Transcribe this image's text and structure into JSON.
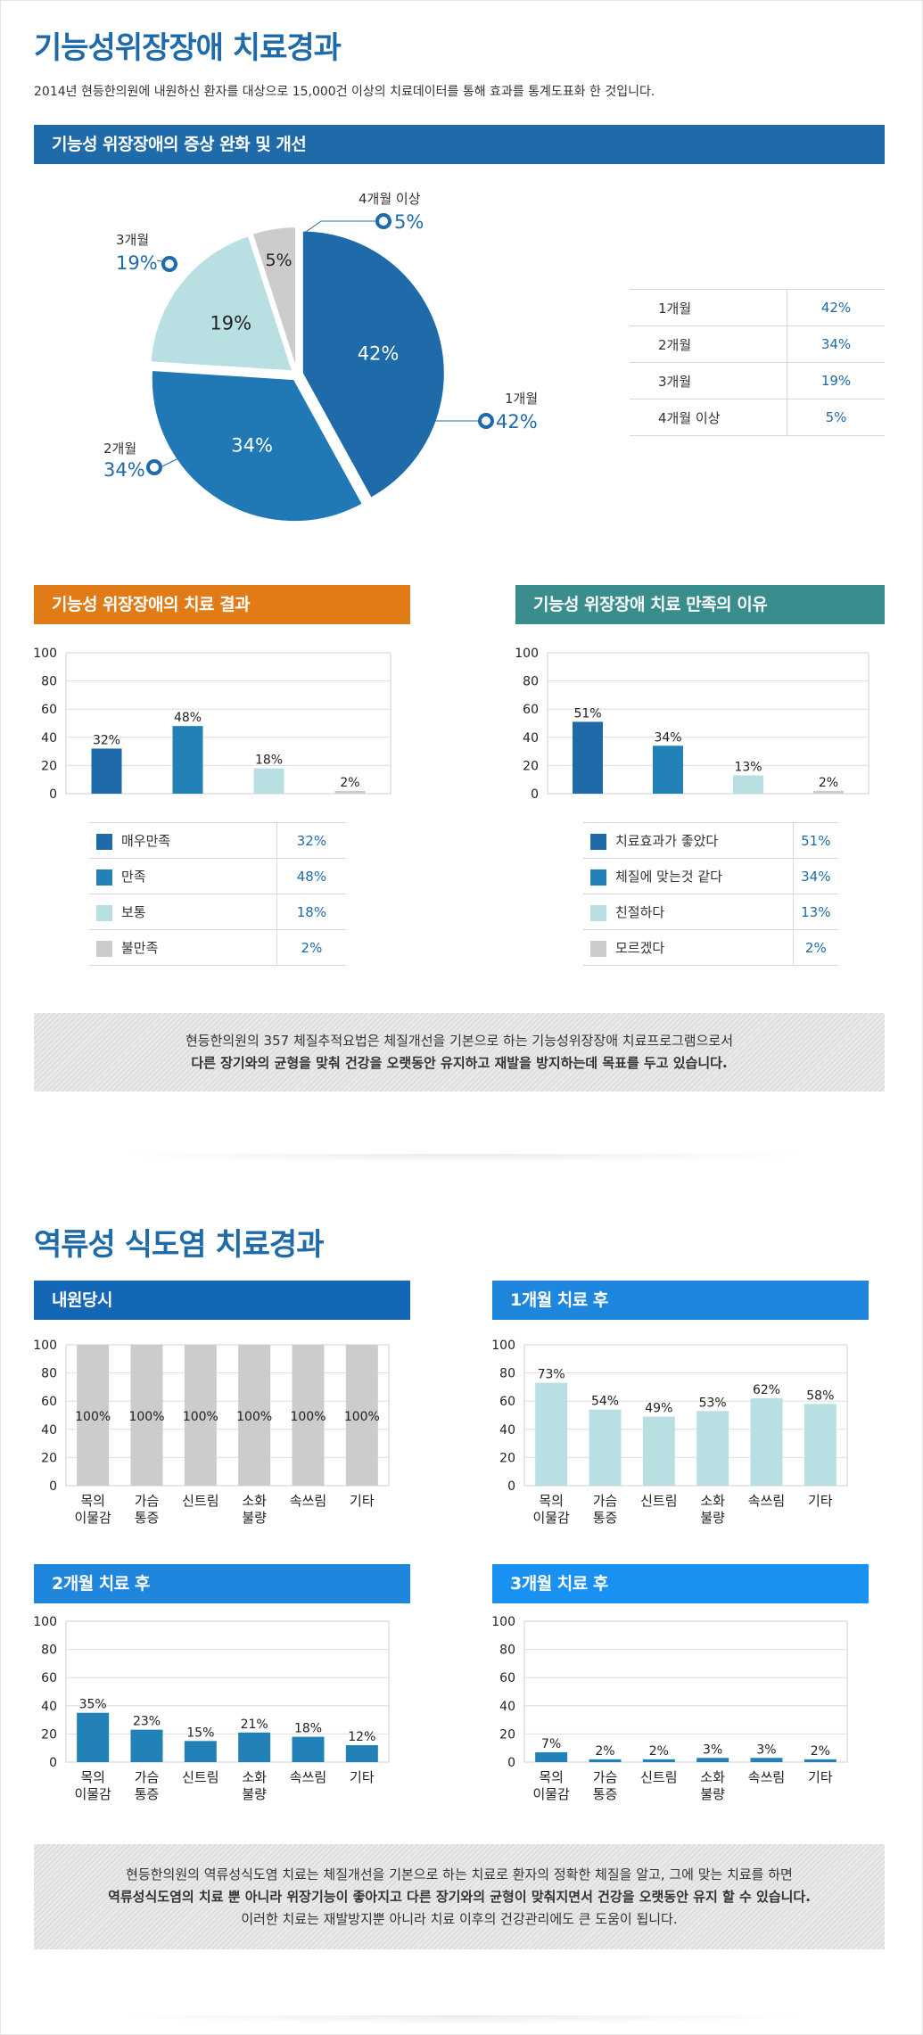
{
  "section1": {
    "title": "기능성위장장애 치료경과",
    "intro": "2014년 현등한의원에 내원하신 환자를 대상으로 15,000건 이상의 치료데이터를 통해 효과를 통계도표화 한 것입니다.",
    "pie_header": "기능성 위장장애의 증상 완화 및 개선",
    "treatment_header": "기능성 위장장애의 치료 결과",
    "reason_header": "기능성 위장장애 치료 만족의 이유",
    "note_line1": "현등한의원의 357 체질추적요법은 체질개선을 기본으로 하는 기능성위장장애 치료프로그램으로서",
    "note_line2": "다른 장기와의 균형을 맞춰 건강을 오랫동안 유지하고 재발을 방지하는데 목표를 두고 있습니다."
  },
  "section2": {
    "title": "역류성 식도염 치료경과",
    "panel_titles": [
      "내원당시",
      "1개월 치료 후",
      "2개월 치료 후",
      "3개월 치료 후"
    ],
    "note_line1": "현등한의원의 역류성식도염 치료는 체질개선을 기본으로 하는 치료로 환자의 정확한 체질을 알고, 그에 맞는 치료를 하면",
    "note_line2": "역류성식도염의 치료 뿐 아니라 위장기능이 좋아지고 다른 장기와의 균형이 맞춰지면서 건강을 오랫동안 유지 할 수 있습니다.",
    "note_line3": "이러한 치료는 재발방지뿐 아니라 치료 이후의 건강관리에도 큰 도움이 됩니다."
  },
  "colors": {
    "pie_1m": "#1f6aa8",
    "pie_2m": "#2079b4",
    "pie_3m": "#b8e0e3",
    "pie_4m": "#cccccc",
    "bar_dark": "#1f6aa8",
    "bar_mid": "#2281b6",
    "bar_light": "#b8e0e3",
    "bar_gray": "#cccccc"
  },
  "chart_data": [
    {
      "type": "pie",
      "labels": [
        "1개월",
        "2개월",
        "3개월",
        "4개월 이상"
      ],
      "values": [
        42,
        34,
        19,
        5
      ],
      "value_labels": [
        "42%",
        "34%",
        "19%",
        "5%"
      ],
      "table": [
        {
          "label": "1개월",
          "value": "42%"
        },
        {
          "label": "2개월",
          "value": "34%"
        },
        {
          "label": "3개월",
          "value": "19%"
        },
        {
          "label": "4개월 이상",
          "value": "5%"
        }
      ]
    },
    {
      "type": "bar",
      "categories": [
        "매우만족",
        "만족",
        "보통",
        "불만족"
      ],
      "values": [
        32,
        48,
        18,
        2
      ],
      "value_labels": [
        "32%",
        "48%",
        "18%",
        "2%"
      ],
      "ylim": [
        0,
        100
      ],
      "yticks": [
        "0",
        "20",
        "40",
        "60",
        "80",
        "100"
      ]
    },
    {
      "type": "bar",
      "categories": [
        "치료효과가 좋았다",
        "체질에 맞는것 같다",
        "친절하다",
        "모르겠다"
      ],
      "values": [
        51,
        34,
        13,
        2
      ],
      "value_labels": [
        "51%",
        "34%",
        "13%",
        "2%"
      ],
      "ylim": [
        0,
        100
      ],
      "yticks": [
        "0",
        "20",
        "40",
        "60",
        "80",
        "100"
      ]
    },
    {
      "type": "bar",
      "categories": [
        "목의|이물감",
        "가슴|통증",
        "신트림",
        "소화|불량",
        "속쓰림",
        "기타"
      ],
      "values": [
        100,
        100,
        100,
        100,
        100,
        100
      ],
      "value_labels": [
        "100%",
        "100%",
        "100%",
        "100%",
        "100%",
        "100%"
      ],
      "ylim": [
        0,
        100
      ],
      "yticks": [
        "0",
        "20",
        "40",
        "60",
        "80",
        "100"
      ]
    },
    {
      "type": "bar",
      "categories": [
        "목의|이물감",
        "가슴|통증",
        "신트림",
        "소화|불량",
        "속쓰림",
        "기타"
      ],
      "values": [
        73,
        54,
        49,
        53,
        62,
        58
      ],
      "value_labels": [
        "73%",
        "54%",
        "49%",
        "53%",
        "62%",
        "58%"
      ],
      "ylim": [
        0,
        100
      ],
      "yticks": [
        "0",
        "20",
        "40",
        "60",
        "80",
        "100"
      ]
    },
    {
      "type": "bar",
      "categories": [
        "목의|이물감",
        "가슴|통증",
        "신트림",
        "소화|불량",
        "속쓰림",
        "기타"
      ],
      "values": [
        35,
        23,
        15,
        21,
        18,
        12
      ],
      "value_labels": [
        "35%",
        "23%",
        "15%",
        "21%",
        "18%",
        "12%"
      ],
      "ylim": [
        0,
        100
      ],
      "yticks": [
        "0",
        "20",
        "40",
        "60",
        "80",
        "100"
      ]
    },
    {
      "type": "bar",
      "categories": [
        "목의|이물감",
        "가슴|통증",
        "신트림",
        "소화|불량",
        "속쓰림",
        "기타"
      ],
      "values": [
        7,
        2,
        2,
        3,
        3,
        2
      ],
      "value_labels": [
        "7%",
        "2%",
        "2%",
        "3%",
        "3%",
        "2%"
      ],
      "ylim": [
        0,
        100
      ],
      "yticks": [
        "0",
        "20",
        "40",
        "60",
        "80",
        "100"
      ]
    }
  ]
}
